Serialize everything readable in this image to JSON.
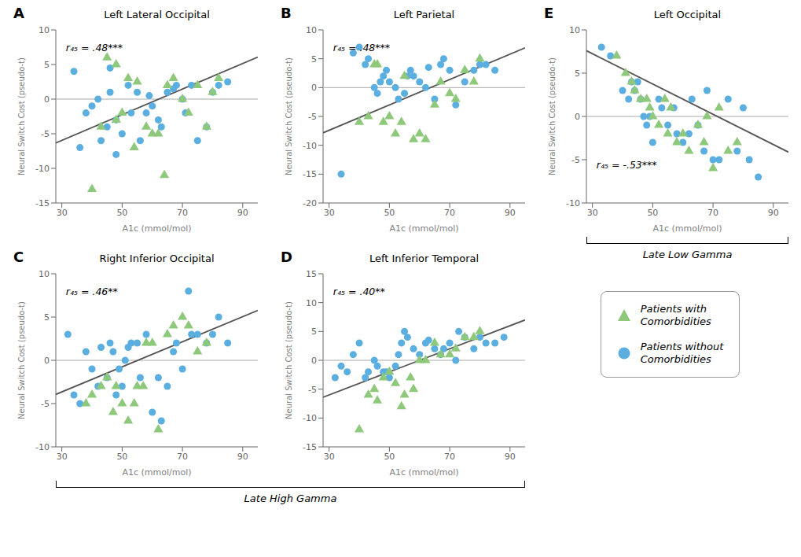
{
  "chart_data": [
    {
      "type": "scatter",
      "label": "A",
      "title": "Left Lateral Occipital",
      "annotation": "r₄₅ = .48***",
      "xlabel": "A1c (mmol/mol)",
      "ylabel": "Neural Switch Cost (pseudo-t)",
      "xlim": [
        28,
        95
      ],
      "ylim": [
        -15,
        10
      ],
      "xticks": [
        30,
        50,
        70,
        90
      ],
      "yticks": [
        -15,
        -10,
        -5,
        0,
        5,
        10
      ],
      "series": [
        {
          "type": "line",
          "color": "#AAAAAA",
          "x": [
            28,
            95
          ],
          "values": [
            0,
            0
          ]
        },
        {
          "type": "line",
          "color": "#555555",
          "x": [
            28,
            95
          ],
          "values": [
            -6.32,
            6.075
          ]
        },
        {
          "type": "scatter",
          "name": "Patients without\nComorbidities",
          "color": "#5BAEE0",
          "marker": "circle",
          "x": [
            34,
            36,
            38,
            40,
            42,
            43,
            45,
            46,
            46,
            48,
            48,
            50,
            52,
            53,
            55,
            56,
            58,
            59,
            60,
            62,
            63,
            65,
            67,
            68,
            70,
            71,
            73,
            75,
            78,
            80,
            82,
            85
          ],
          "values": [
            4,
            -7,
            -2,
            -1,
            0,
            -6,
            -4,
            1,
            4.5,
            -8,
            -3,
            -5,
            2,
            -2,
            1,
            -6,
            -2,
            0.5,
            -1,
            -3,
            -4,
            1,
            1.5,
            2,
            0,
            -2,
            2,
            -6,
            -4,
            1,
            2,
            2.5
          ]
        },
        {
          "type": "scatter",
          "name": "Patients with\nComorbidities",
          "color": "#8EC87A",
          "marker": "triangle",
          "x": [
            40,
            43,
            45,
            48,
            48,
            50,
            52,
            54,
            55,
            58,
            60,
            62,
            64,
            65,
            67,
            70,
            72,
            75,
            78,
            80,
            82
          ],
          "values": [
            -13,
            -4,
            6,
            5,
            -3,
            -2,
            3,
            -7,
            2.5,
            -4,
            -5,
            -5,
            -11,
            2,
            3,
            0,
            -2,
            2,
            -4,
            1,
            3
          ]
        }
      ]
    },
    {
      "type": "scatter",
      "label": "B",
      "title": "Left Parietal",
      "annotation": "r₄₅ = .48***",
      "xlabel": "A1c (mmol/mol)",
      "ylabel": "Neural Switch Cost (pseudo-t)",
      "xlim": [
        28,
        95
      ],
      "ylim": [
        -20,
        10
      ],
      "xticks": [
        30,
        50,
        70,
        90
      ],
      "yticks": [
        -20,
        -15,
        -10,
        -5,
        0,
        5,
        10
      ],
      "series": [
        {
          "type": "line",
          "color": "#AAAAAA",
          "x": [
            28,
            95
          ],
          "values": [
            0,
            0
          ]
        },
        {
          "type": "line",
          "color": "#555555",
          "x": [
            28,
            95
          ],
          "values": [
            -7.84,
            6.9
          ]
        },
        {
          "type": "scatter",
          "name": "Patients without\nComorbidities",
          "color": "#5BAEE0",
          "marker": "circle",
          "x": [
            34,
            38,
            40,
            42,
            43,
            45,
            46,
            47,
            48,
            49,
            50,
            52,
            53,
            55,
            56,
            57,
            58,
            60,
            62,
            63,
            65,
            67,
            68,
            70,
            72,
            75,
            78,
            80,
            82,
            85
          ],
          "values": [
            -15,
            6,
            7,
            4,
            5,
            0,
            -1,
            1,
            2,
            3,
            1,
            0,
            -2,
            -1,
            2,
            3,
            2,
            1,
            0,
            3.5,
            -2,
            4,
            5,
            3,
            -3,
            1,
            3,
            4,
            4,
            3
          ]
        },
        {
          "type": "scatter",
          "name": "Patients with\nComorbidities",
          "color": "#8EC87A",
          "marker": "triangle",
          "x": [
            40,
            43,
            45,
            46,
            48,
            50,
            52,
            54,
            55,
            58,
            60,
            62,
            65,
            67,
            70,
            72,
            75,
            78,
            80
          ],
          "values": [
            -6,
            -5,
            4,
            4,
            -6,
            -5,
            -8,
            -6,
            2,
            -9,
            -8,
            -9,
            -3,
            1,
            -1,
            -2,
            3,
            1,
            5
          ]
        }
      ]
    },
    {
      "type": "scatter",
      "label": "C",
      "title": "Right Inferior Occipital",
      "annotation": "r₄₅ = .46**",
      "xlabel": "A1c (mmol/mol)",
      "ylabel": "Neural Switch Cost (pseudo-t)",
      "xlim": [
        28,
        95
      ],
      "ylim": [
        -10,
        10
      ],
      "xticks": [
        30,
        50,
        70,
        90
      ],
      "yticks": [
        -10,
        -5,
        0,
        5,
        10
      ],
      "series": [
        {
          "type": "line",
          "color": "#AAAAAA",
          "x": [
            28,
            95
          ],
          "values": [
            0,
            0
          ]
        },
        {
          "type": "line",
          "color": "#555555",
          "x": [
            28,
            95
          ],
          "values": [
            -3.94,
            5.775
          ]
        },
        {
          "type": "scatter",
          "name": "Patients without\nComorbidities",
          "color": "#5BAEE0",
          "marker": "circle",
          "x": [
            32,
            34,
            36,
            38,
            40,
            42,
            43,
            45,
            46,
            47,
            48,
            49,
            50,
            51,
            52,
            53,
            55,
            56,
            58,
            60,
            62,
            63,
            65,
            67,
            68,
            70,
            72,
            73,
            75,
            78,
            80,
            82,
            85
          ],
          "values": [
            3,
            -4,
            -5,
            1,
            -1,
            -3,
            1.5,
            -2,
            2,
            1,
            -4,
            -1,
            -3,
            0,
            1.5,
            2,
            2,
            -2,
            3,
            -6,
            -2,
            -7,
            -3,
            1,
            2,
            -1,
            8,
            3,
            3,
            2,
            3,
            5,
            2
          ]
        },
        {
          "type": "scatter",
          "name": "Patients with\nComorbidities",
          "color": "#8EC87A",
          "marker": "triangle",
          "x": [
            38,
            40,
            43,
            45,
            47,
            48,
            50,
            52,
            54,
            55,
            57,
            58,
            60,
            62,
            65,
            67,
            70,
            72,
            75,
            78
          ],
          "values": [
            -5,
            -4,
            -3,
            -2,
            -6,
            -3,
            -5,
            -7,
            -5,
            -3,
            -3,
            2,
            2,
            -8,
            3,
            4,
            5,
            4,
            1,
            2
          ]
        }
      ]
    },
    {
      "type": "scatter",
      "label": "D",
      "title": "Left Inferior Temporal",
      "annotation": "r₄₅ = .40**",
      "xlabel": "A1c (mmol/mol)",
      "ylabel": "Neural Switch Cost (pseudo-t)",
      "xlim": [
        28,
        95
      ],
      "ylim": [
        -15,
        15
      ],
      "xticks": [
        30,
        50,
        70,
        90
      ],
      "yticks": [
        -15,
        -10,
        -5,
        0,
        5,
        10,
        15
      ],
      "series": [
        {
          "type": "line",
          "color": "#AAAAAA",
          "x": [
            28,
            95
          ],
          "values": [
            0,
            0
          ]
        },
        {
          "type": "line",
          "color": "#555555",
          "x": [
            28,
            95
          ],
          "values": [
            -6.4,
            7.0
          ]
        },
        {
          "type": "scatter",
          "name": "Patients without\nComorbidities",
          "color": "#5BAEE0",
          "marker": "circle",
          "x": [
            32,
            34,
            36,
            38,
            40,
            42,
            43,
            45,
            46,
            48,
            49,
            50,
            52,
            53,
            54,
            55,
            56,
            58,
            60,
            62,
            63,
            65,
            67,
            68,
            70,
            72,
            73,
            75,
            78,
            80,
            82,
            85,
            88
          ],
          "values": [
            -3,
            -1,
            -2,
            1,
            3,
            -3,
            -2,
            0,
            -1,
            -2,
            -2,
            -3,
            -1,
            1,
            3,
            5,
            4,
            2,
            1,
            3,
            3.5,
            2,
            1,
            2,
            3,
            0,
            5,
            4,
            2,
            4,
            3,
            3,
            4
          ]
        },
        {
          "type": "scatter",
          "name": "Patients with\nComorbidities",
          "color": "#8EC87A",
          "marker": "triangle",
          "x": [
            40,
            43,
            45,
            46,
            48,
            50,
            52,
            54,
            55,
            57,
            58,
            60,
            62,
            65,
            67,
            70,
            72,
            75,
            78,
            80
          ],
          "values": [
            -12,
            -6,
            -5,
            -7,
            -3,
            -2,
            -4,
            -8,
            -6,
            -3,
            -5,
            0,
            0,
            3,
            1,
            1,
            2,
            4,
            4,
            5
          ]
        }
      ]
    },
    {
      "type": "scatter",
      "label": "E",
      "title": "Left Occipital",
      "annotation": "r₄₅ = -.53***",
      "xlabel": "A1c (mmol/mol)",
      "ylabel": "Neural Switch Cost (pseudo-t)",
      "xlim": [
        28,
        95
      ],
      "ylim": [
        -10,
        10
      ],
      "xticks": [
        30,
        50,
        70,
        90
      ],
      "yticks": [
        -10,
        -5,
        0,
        5,
        10
      ],
      "series": [
        {
          "type": "line",
          "color": "#AAAAAA",
          "x": [
            28,
            95
          ],
          "values": [
            0,
            0
          ]
        },
        {
          "type": "line",
          "color": "#555555",
          "x": [
            28,
            95
          ],
          "values": [
            7.6,
            -4.125
          ]
        },
        {
          "type": "scatter",
          "name": "Patients without\nComorbidities",
          "color": "#5BAEE0",
          "marker": "circle",
          "x": [
            33,
            36,
            40,
            42,
            43,
            44,
            45,
            46,
            47,
            48,
            49,
            50,
            52,
            53,
            55,
            57,
            58,
            60,
            62,
            63,
            65,
            67,
            68,
            70,
            72,
            75,
            78,
            80,
            82,
            85
          ],
          "values": [
            8,
            7,
            3,
            2,
            4,
            3,
            4,
            2,
            0,
            -1,
            0,
            -3,
            2,
            1,
            -1,
            1,
            -2,
            -3,
            -2,
            2,
            -1,
            -4,
            3,
            -5,
            -5,
            2,
            -4,
            1,
            -5,
            -7
          ]
        },
        {
          "type": "scatter",
          "name": "Patients with\nComorbidities",
          "color": "#8EC87A",
          "marker": "triangle",
          "x": [
            38,
            41,
            43,
            44,
            46,
            48,
            49,
            50,
            52,
            54,
            55,
            56,
            58,
            60,
            62,
            65,
            67,
            68,
            70,
            72,
            75,
            78
          ],
          "values": [
            7,
            5,
            4,
            3,
            2,
            2,
            1,
            0,
            -1,
            2,
            -2,
            1,
            -3,
            -2,
            -4,
            -1,
            -3,
            0,
            -6,
            1,
            -4,
            -3
          ]
        }
      ]
    }
  ],
  "annotations": [
    {
      "text": "Late High Gamma",
      "panels": [
        "A",
        "B",
        "C",
        "D"
      ]
    },
    {
      "text": "Late Low Gamma",
      "panels": [
        "E"
      ]
    }
  ]
}
